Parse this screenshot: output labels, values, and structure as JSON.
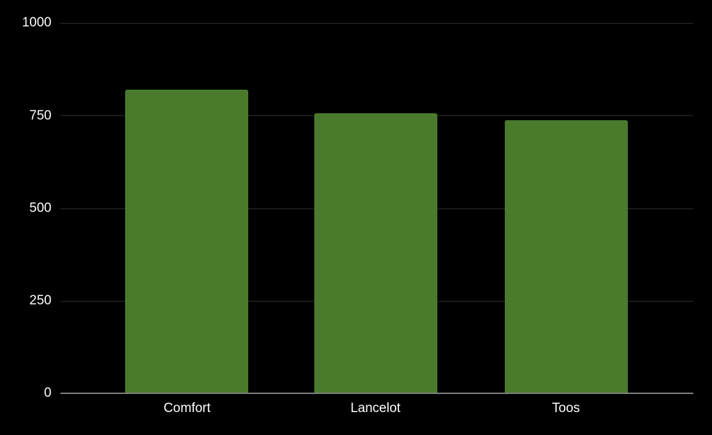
{
  "chart_data": {
    "type": "bar",
    "title": "",
    "xlabel": "",
    "ylabel": "",
    "categories": [
      "Comfort",
      "Lancelot",
      "Toos"
    ],
    "values": [
      820,
      756,
      738
    ],
    "ylim": [
      0,
      1000
    ],
    "yticks": [
      0,
      250,
      500,
      750,
      1000
    ],
    "grid": true,
    "legend": "none",
    "colors": {
      "background": "#000000",
      "bar": "#4a7b2c",
      "gridline": "#2d2d2d",
      "baseline": "#7f7f7f",
      "tick_label": "#ffffff"
    }
  }
}
